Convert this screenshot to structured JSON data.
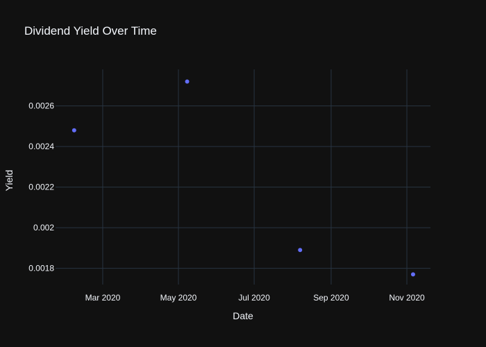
{
  "chart_data": {
    "type": "scatter",
    "title": "Dividend Yield Over Time",
    "xlabel": "Date",
    "ylabel": "Yield",
    "x": [
      "2020-02-07",
      "2020-05-08",
      "2020-08-07",
      "2020-11-06"
    ],
    "y": [
      0.00248,
      0.00272,
      0.00189,
      0.00177
    ],
    "xlim": [
      "2020-01-23",
      "2020-11-20"
    ],
    "ylim": [
      0.00172,
      0.00278
    ],
    "x_ticks": [
      {
        "date": "2020-03-01",
        "label": "Mar 2020"
      },
      {
        "date": "2020-05-01",
        "label": "May 2020"
      },
      {
        "date": "2020-07-01",
        "label": "Jul 2020"
      },
      {
        "date": "2020-09-01",
        "label": "Sep 2020"
      },
      {
        "date": "2020-11-01",
        "label": "Nov 2020"
      }
    ],
    "y_ticks": [
      {
        "value": 0.0018,
        "label": "0.0018"
      },
      {
        "value": 0.002,
        "label": "0.002"
      },
      {
        "value": 0.0022,
        "label": "0.0022"
      },
      {
        "value": 0.0024,
        "label": "0.0024"
      },
      {
        "value": 0.0026,
        "label": "0.0026"
      }
    ],
    "grid": true,
    "colors": {
      "background": "#111111",
      "grid": "#283442",
      "marker": "#636efa",
      "text": "#f2f5fa"
    }
  }
}
